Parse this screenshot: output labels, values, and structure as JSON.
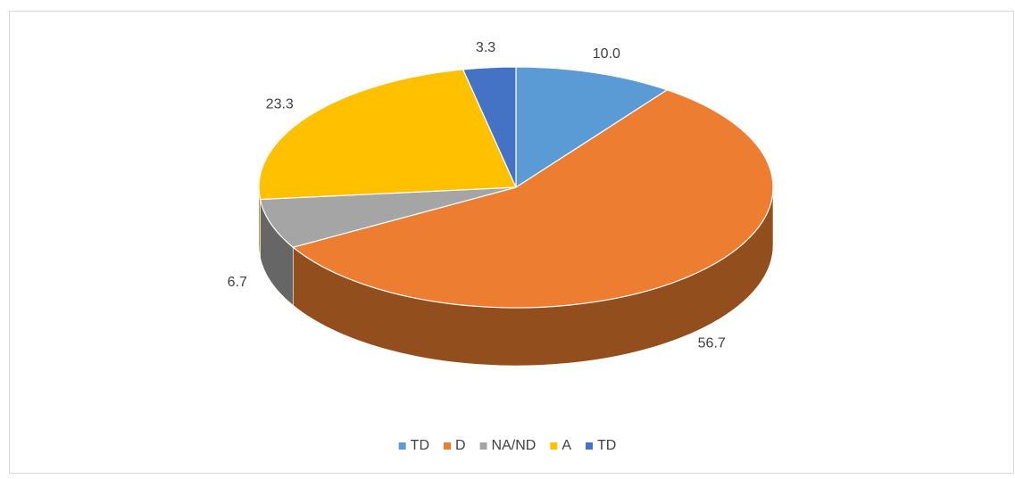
{
  "chart_data": {
    "type": "pie",
    "categories": [
      "TD",
      "D",
      "NA/ND",
      "A",
      "TD"
    ],
    "values": [
      10.0,
      56.7,
      6.7,
      23.3,
      3.3
    ],
    "value_labels": [
      "10.0",
      "56.7",
      "6.7",
      "23.3",
      "3.3"
    ],
    "colors": [
      "#5b9bd5",
      "#ed7d31",
      "#a5a5a5",
      "#ffc000",
      "#4472c4"
    ],
    "legend": "bottom"
  }
}
